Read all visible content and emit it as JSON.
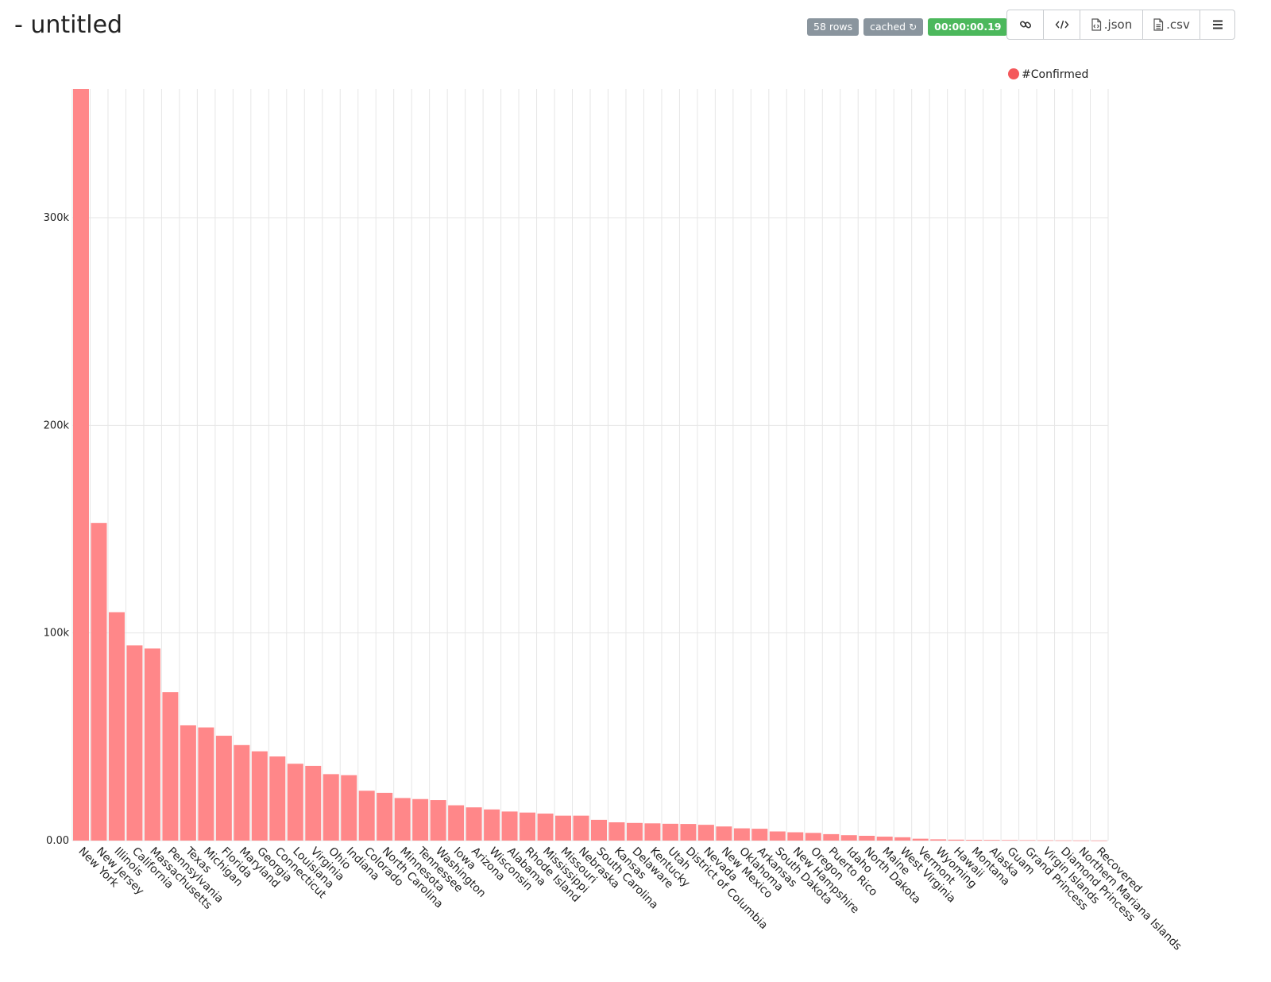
{
  "header": {
    "title": "- untitled",
    "badges": {
      "rows": "58 rows",
      "cached": "cached",
      "duration": "00:00:00.19"
    },
    "toolbar": {
      "link_icon": "link-icon",
      "embed_icon": "code-icon",
      "json_label": ".json",
      "csv_label": ".csv",
      "menu_icon": "menu-icon"
    }
  },
  "colors": {
    "bar": "#ff8789",
    "legend_dot": "#f4585b",
    "grid": "#e6e6e6",
    "badge_gray": "#8a959e",
    "badge_green": "#4cb85c"
  },
  "chart_data": {
    "type": "bar",
    "title": "",
    "xlabel": "",
    "ylabel": "",
    "ylim": [
      0,
      362000
    ],
    "yticks": [
      {
        "value": 0,
        "label": "0.00"
      },
      {
        "value": 100000,
        "label": "100k"
      },
      {
        "value": 200000,
        "label": "200k"
      },
      {
        "value": 300000,
        "label": "300k"
      }
    ],
    "grid": true,
    "legend_position": "top-right",
    "series": [
      {
        "name": "#Confirmed",
        "values": [
          362000,
          153000,
          110000,
          94000,
          92500,
          71500,
          55500,
          54500,
          50500,
          46000,
          43000,
          40500,
          37000,
          36000,
          32000,
          31500,
          24000,
          23000,
          20500,
          20000,
          19500,
          17000,
          16000,
          15000,
          14000,
          13500,
          13000,
          12000,
          12000,
          10000,
          8800,
          8500,
          8300,
          8100,
          8000,
          7600,
          6800,
          5900,
          5700,
          4400,
          4000,
          3700,
          3100,
          2600,
          2300,
          1900,
          1600,
          900,
          600,
          450,
          350,
          300,
          250,
          200,
          150,
          100,
          60,
          30
        ]
      }
    ],
    "categories": [
      "New York",
      "New Jersey",
      "Illinois",
      "California",
      "Massachusetts",
      "Pennsylvania",
      "Texas",
      "Michigan",
      "Florida",
      "Maryland",
      "Georgia",
      "Connecticut",
      "Louisiana",
      "Virginia",
      "Ohio",
      "Indiana",
      "Colorado",
      "North Carolina",
      "Minnesota",
      "Tennessee",
      "Washington",
      "Iowa",
      "Arizona",
      "Wisconsin",
      "Alabama",
      "Rhode Island",
      "Mississippi",
      "Missouri",
      "Nebraska",
      "South Carolina",
      "Kansas",
      "Delaware",
      "Kentucky",
      "Utah",
      "District of Columbia",
      "Nevada",
      "New Mexico",
      "Oklahoma",
      "Arkansas",
      "South Dakota",
      "New Hampshire",
      "Oregon",
      "Puerto Rico",
      "Idaho",
      "North Dakota",
      "Maine",
      "West Virginia",
      "Vermont",
      "Wyoming",
      "Hawaii",
      "Montana",
      "Alaska",
      "Guam",
      "Grand Princess",
      "Virgin Islands",
      "Diamond Princess",
      "Northern Mariana Islands",
      "Recovered"
    ]
  }
}
